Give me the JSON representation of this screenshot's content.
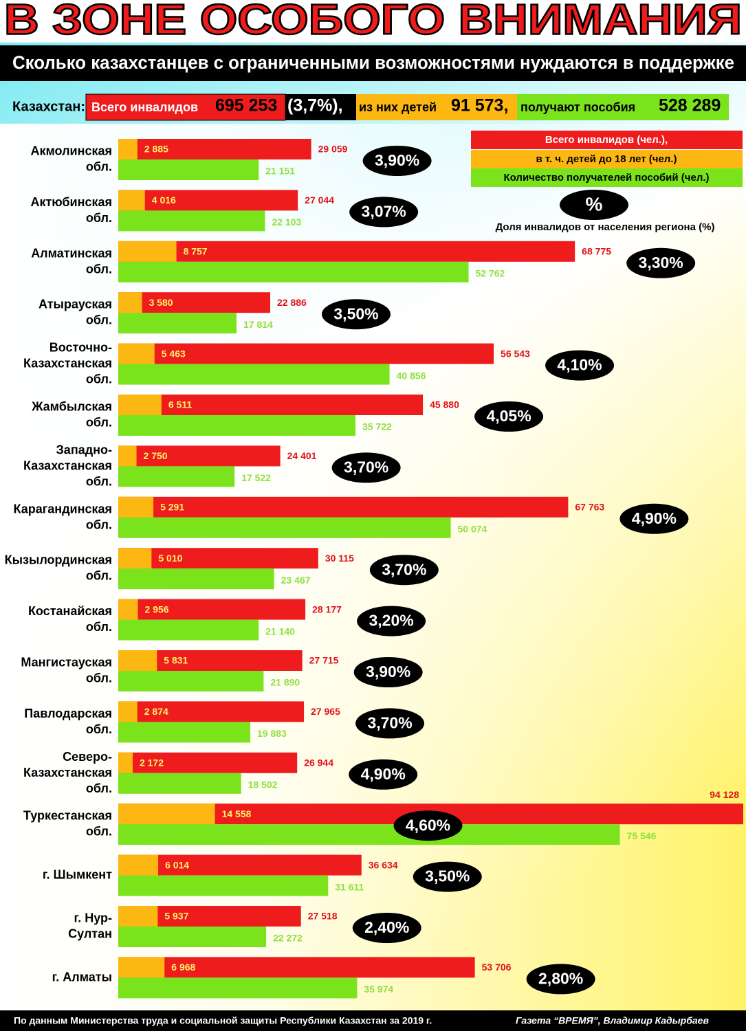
{
  "title": "В ЗОНЕ ОСОБОГО ВНИМАНИЯ",
  "subtitle": "Сколько казахстанцев с ограниченными возможностями нуждаются в поддержке",
  "summary": {
    "label": "Казахстан:",
    "total_text": "Всего инвалидов",
    "total": "695 253",
    "share": "(3,7%),",
    "children_text": "из них детей",
    "children": "91 573,",
    "benefits_text": "получают пособия",
    "benefits": "528 289"
  },
  "chart_data": {
    "type": "bar",
    "categories": [
      "Акмолинская обл.",
      "Актюбинская обл.",
      "Алматинская обл.",
      "Атырауская обл.",
      "Восточно-Казахстанская обл.",
      "Жамбылская обл.",
      "Западно-Казахстанская обл.",
      "Карагандинская обл.",
      "Кызылординская обл.",
      "Костанайская обл.",
      "Мангистауская обл.",
      "Павлодарская обл.",
      "Северо-Казахстанская обл.",
      "Туркестанская обл.",
      "г. Шымкент",
      "г. Нур-Султан",
      "г. Алматы"
    ],
    "series": [
      {
        "name": "Всего инвалидов (чел.),",
        "color": "#ee1c1c",
        "values": [
          29059,
          27044,
          68775,
          22886,
          56543,
          45880,
          24401,
          67763,
          30115,
          28177,
          27715,
          27965,
          26944,
          94128,
          36634,
          27518,
          53706
        ],
        "value_labels": [
          "29 059",
          "27 044",
          "68 775",
          "22 886",
          "56 543",
          "45 880",
          "24 401",
          "67 763",
          "30 115",
          "28 177",
          "27 715",
          "27 965",
          "26 944",
          "94 128",
          "36 634",
          "27 518",
          "53 706"
        ]
      },
      {
        "name": "в т. ч. детей до 18 лет (чел.)",
        "color": "#fcb712",
        "values": [
          2885,
          4016,
          8757,
          3580,
          5463,
          6511,
          2750,
          5291,
          5010,
          2956,
          5831,
          2874,
          2172,
          14558,
          6014,
          5937,
          6968
        ],
        "value_labels": [
          "2 885",
          "4 016",
          "8 757",
          "3 580",
          "5 463",
          "6 511",
          "2 750",
          "5 291",
          "5 010",
          "2 956",
          "5 831",
          "2 874",
          "2 172",
          "14 558",
          "6 014",
          "5 937",
          "6 968"
        ]
      },
      {
        "name": "Количество получателей пособий (чел.)",
        "color": "#7be31c",
        "values": [
          21151,
          22103,
          52762,
          17814,
          40856,
          35722,
          17522,
          50074,
          23467,
          21140,
          21890,
          19883,
          18502,
          75546,
          31611,
          22272,
          35974
        ],
        "value_labels": [
          "21 151",
          "22 103",
          "52 762",
          "17 814",
          "40 856",
          "35 722",
          "17 522",
          "50 074",
          "23 467",
          "21 140",
          "21 890",
          "19 883",
          "18 502",
          "75 546",
          "31 611",
          "22 272",
          "35 974"
        ]
      }
    ],
    "share": {
      "symbol": "%",
      "name": "Доля инвалидов от населения региона (%)",
      "values": [
        3.9,
        3.07,
        3.3,
        3.5,
        4.1,
        4.05,
        3.7,
        4.9,
        3.7,
        3.2,
        3.9,
        3.7,
        4.9,
        4.6,
        3.5,
        2.4,
        2.8
      ],
      "value_labels": [
        "3,90%",
        "3,07%",
        "3,30%",
        "3,50%",
        "4,10%",
        "4,05%",
        "3,70%",
        "4,90%",
        "3,70%",
        "3,20%",
        "3,90%",
        "3,70%",
        "4,90%",
        "4,60%",
        "3,50%",
        "2,40%",
        "2,80%"
      ]
    }
  },
  "footer": {
    "source": "По данным Министерства труда и социальной защиты Республики Казахстан  за 2019 г.",
    "credit": "Газета “ВРЕМЯ”, Владимир Кадырбаев"
  }
}
